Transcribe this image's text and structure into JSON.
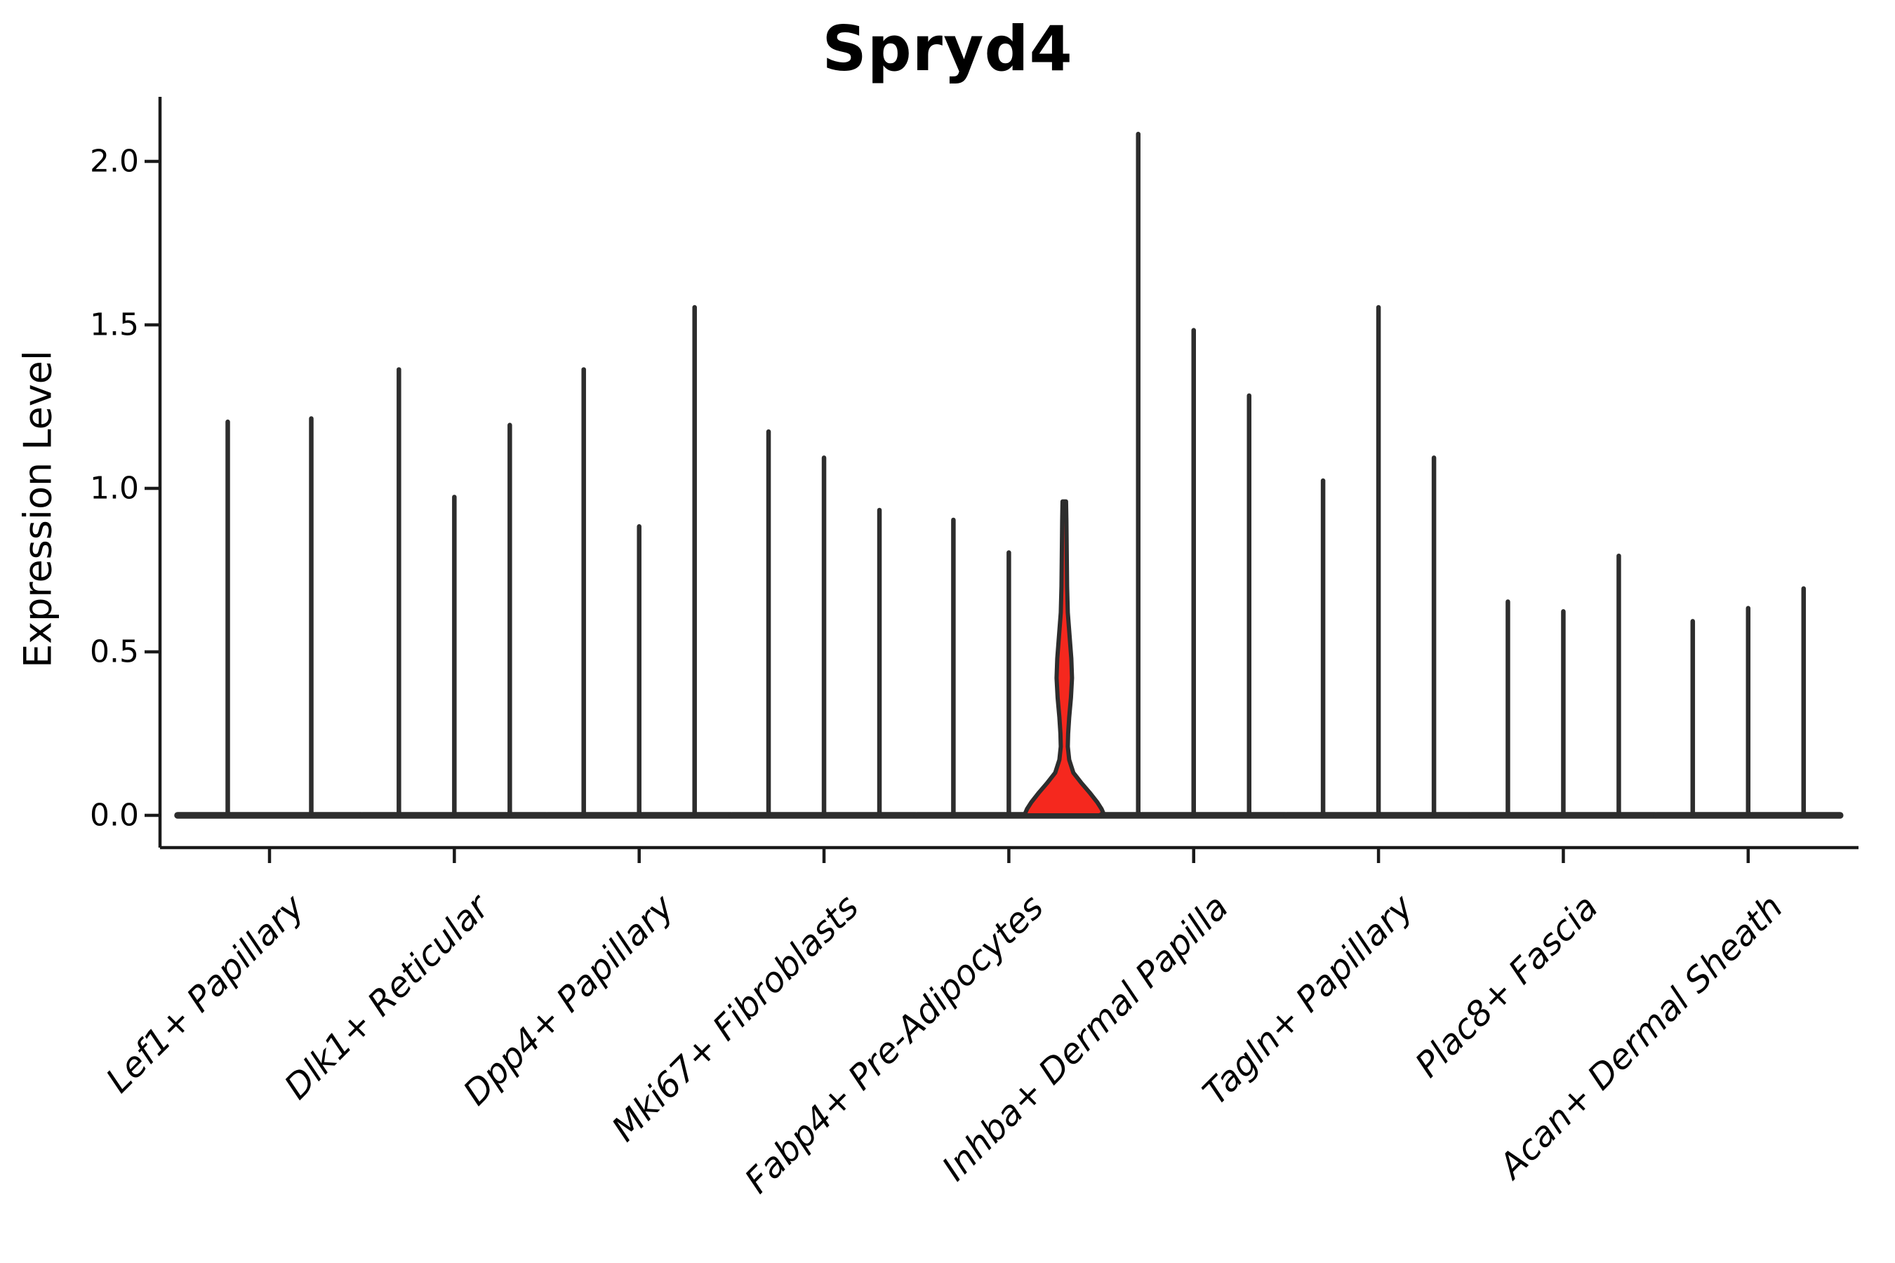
{
  "chart_data": {
    "type": "violin",
    "title": "Spryd4",
    "ylabel": "Expression Level",
    "xlabel": "",
    "grid": false,
    "legend": "none",
    "y_ticks": [
      "0.0",
      "0.5",
      "1.0",
      "1.5",
      "2.0"
    ],
    "y_tick_values": [
      0.0,
      0.5,
      1.0,
      1.5,
      2.0
    ],
    "ylim": [
      -0.1,
      2.2
    ],
    "categories": [
      "Lef1+ Papillary",
      "Dlk1+ Reticular",
      "Dpp4+ Papillary",
      "Mki67+ Fibroblasts",
      "Fabp4+ Pre-Adipocytes",
      "Inhba+ Dermal Papilla",
      "Tagln+ Papillary",
      "Plac8+ Fascia",
      "Acan+ Dermal Sheath"
    ],
    "series": [
      {
        "category": "Lef1+ Papillary",
        "violin_max_values": [
          1.21,
          1.22
        ]
      },
      {
        "category": "Dlk1+ Reticular",
        "violin_max_values": [
          1.37,
          0.98,
          1.2
        ]
      },
      {
        "category": "Dpp4+ Papillary",
        "violin_max_values": [
          1.37,
          0.89,
          1.56
        ]
      },
      {
        "category": "Mki67+ Fibroblasts",
        "violin_max_values": [
          1.18,
          1.1,
          0.94
        ]
      },
      {
        "category": "Fabp4+ Pre-Adipocytes",
        "violin_max_values": [
          0.91,
          0.81,
          0.96
        ]
      },
      {
        "category": "Inhba+ Dermal Papilla",
        "violin_max_values": [
          2.09,
          1.49,
          1.29
        ]
      },
      {
        "category": "Tagln+ Papillary",
        "violin_max_values": [
          1.03,
          1.56,
          1.1
        ]
      },
      {
        "category": "Plac8+ Fascia",
        "violin_max_values": [
          0.66,
          0.63,
          0.8
        ]
      },
      {
        "category": "Acan+ Dermal Sheath",
        "violin_max_values": [
          0.6,
          0.64,
          0.7
        ]
      }
    ],
    "highlight": {
      "category": "Fabp4+ Pre-Adipocytes",
      "violin_index": 2,
      "max_value": 0.96,
      "fill_color": "#f5281e",
      "description": "filled red violin with density bulge between ~0.2 and ~0.55 and wide bell at 0"
    },
    "highlight_profile": [
      [
        0.96,
        2.5
      ],
      [
        0.9,
        3.0
      ],
      [
        0.8,
        3.5
      ],
      [
        0.7,
        4.0
      ],
      [
        0.62,
        5.0
      ],
      [
        0.55,
        7.5
      ],
      [
        0.48,
        10.0
      ],
      [
        0.42,
        11.0
      ],
      [
        0.36,
        9.5
      ],
      [
        0.3,
        7.0
      ],
      [
        0.25,
        5.5
      ],
      [
        0.21,
        5.0
      ],
      [
        0.17,
        7.0
      ],
      [
        0.13,
        13.0
      ],
      [
        0.1,
        24.0
      ],
      [
        0.07,
        36.0
      ],
      [
        0.04,
        47.0
      ],
      [
        0.02,
        53.0
      ],
      [
        0.005,
        56.0
      ],
      [
        0.0,
        56.0
      ]
    ],
    "colors": {
      "violin_line": "#2d2d2d",
      "axis": "#1a1a1a",
      "text": "#000000",
      "background": "#ffffff",
      "highlight_fill": "#f5281e"
    }
  }
}
